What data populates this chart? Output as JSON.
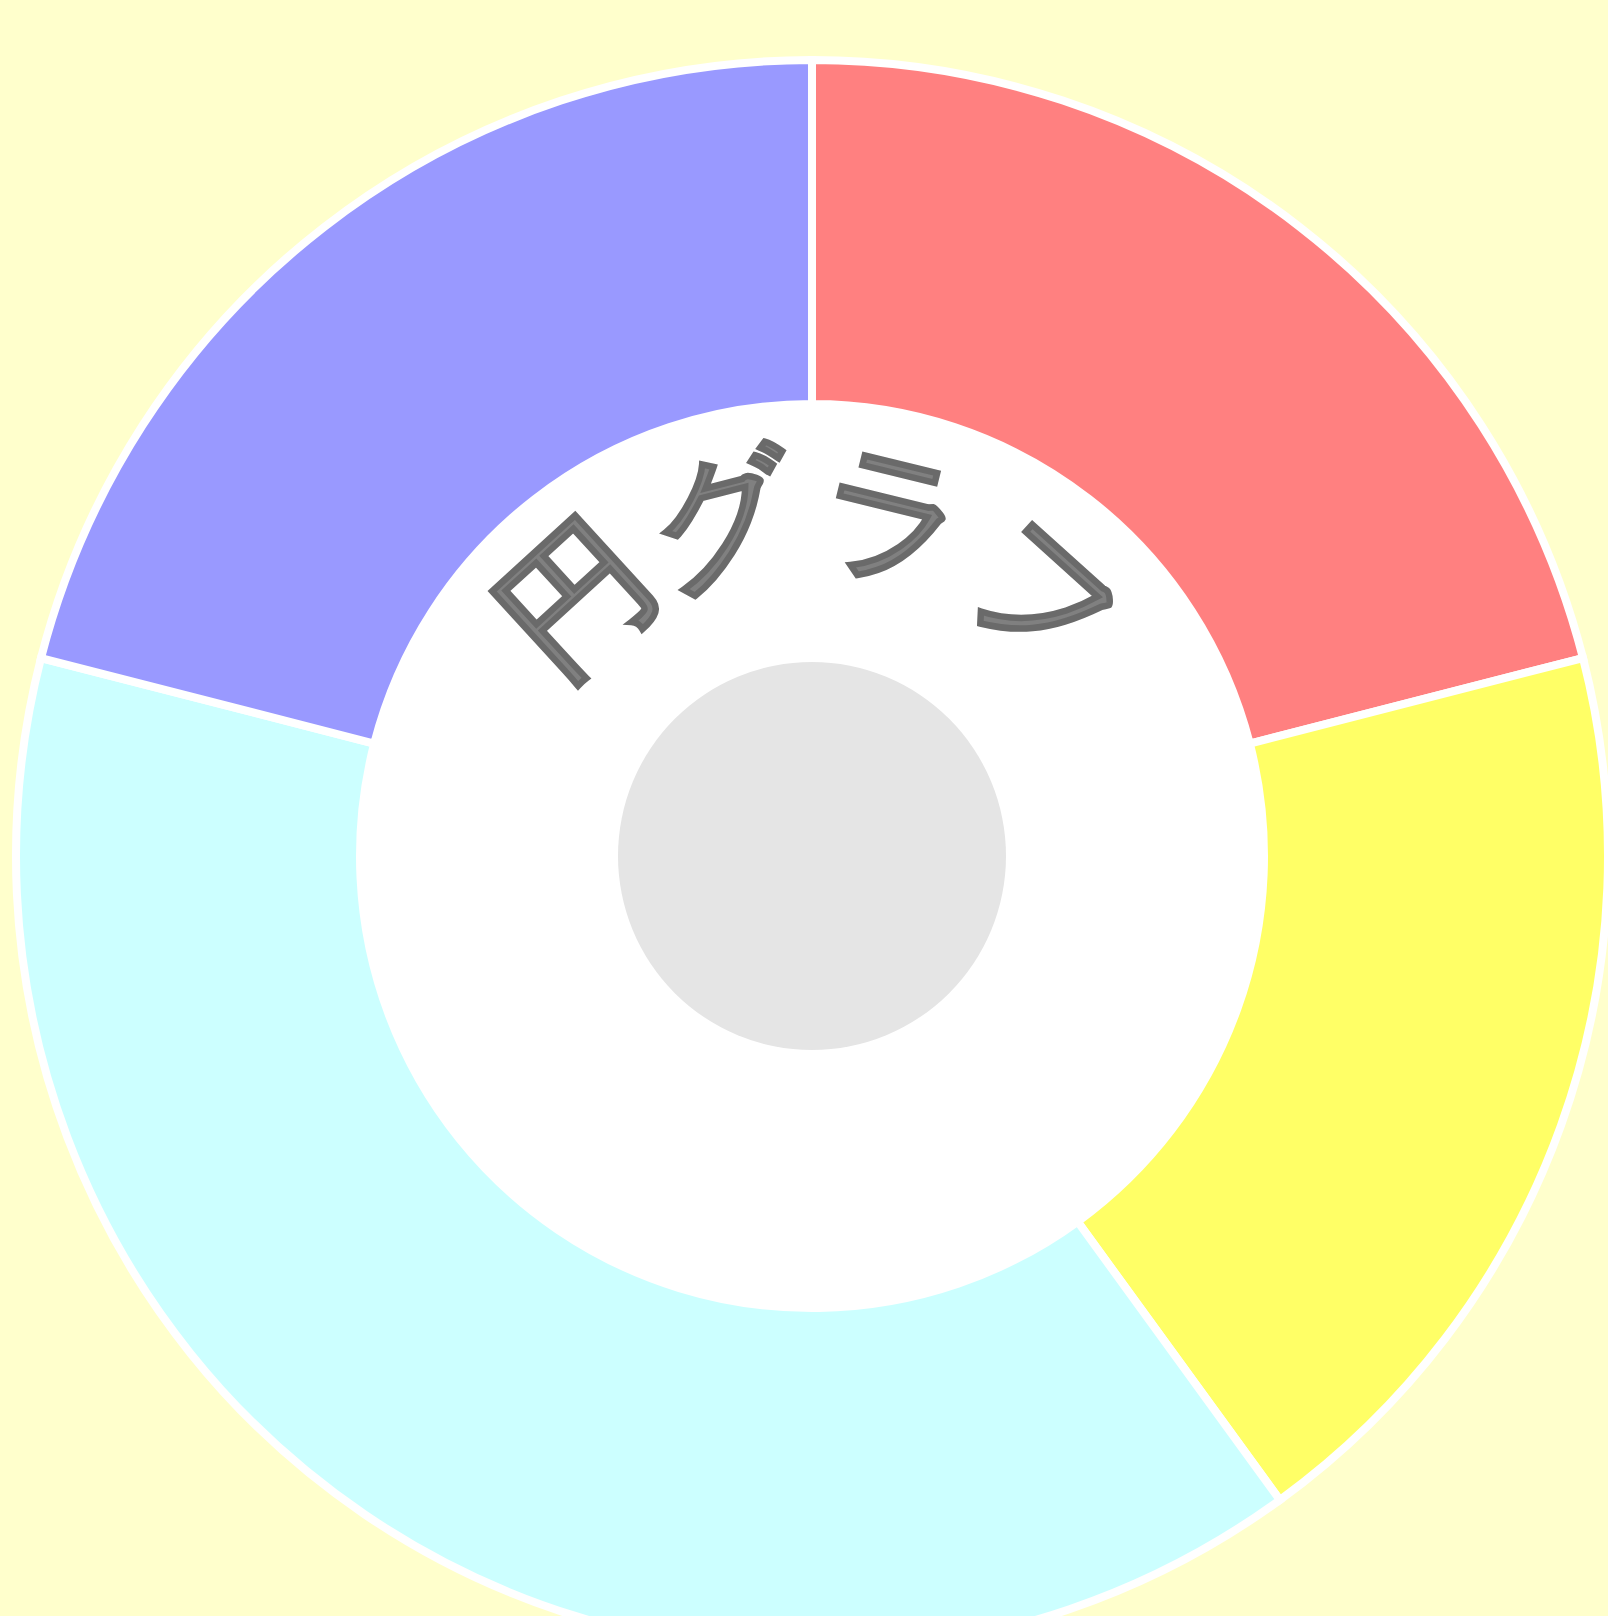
{
  "chart_data": {
    "type": "donut",
    "title": "円グラフ",
    "categories": [
      null,
      null,
      null,
      null
    ],
    "values": [
      21,
      19,
      39,
      21
    ],
    "colors": [
      "#ff8080",
      "#ffff66",
      "#ccffff",
      "#9999ff"
    ]
  }
}
